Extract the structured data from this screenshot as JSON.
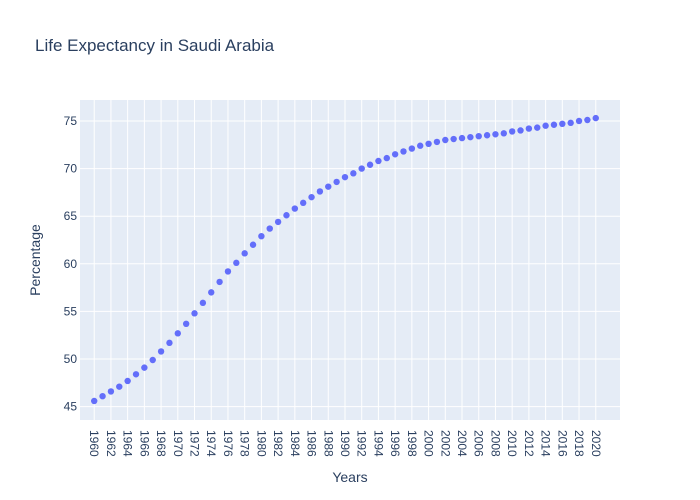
{
  "chart_data": {
    "type": "scatter",
    "title": "Life Expectancy in Saudi Arabia",
    "xlabel": "Years",
    "ylabel": "Percentage",
    "xlim": [
      1958.3,
      2022.9
    ],
    "ylim": [
      43.6,
      77.2
    ],
    "grid": true,
    "legend": "none",
    "colors": {
      "marker": "#636efa",
      "plot_bg": "#e5ecf6",
      "grid": "#ffffff",
      "text": "#2a3f5f"
    },
    "x_ticks": [
      1960,
      1962,
      1964,
      1966,
      1968,
      1970,
      1972,
      1974,
      1976,
      1978,
      1980,
      1982,
      1984,
      1986,
      1988,
      1990,
      1992,
      1994,
      1996,
      1998,
      2000,
      2002,
      2004,
      2006,
      2008,
      2010,
      2012,
      2014,
      2016,
      2018,
      2020
    ],
    "y_ticks": [
      45,
      50,
      55,
      60,
      65,
      70,
      75
    ],
    "x": [
      1960,
      1961,
      1962,
      1963,
      1964,
      1965,
      1966,
      1967,
      1968,
      1969,
      1970,
      1971,
      1972,
      1973,
      1974,
      1975,
      1976,
      1977,
      1978,
      1979,
      1980,
      1981,
      1982,
      1983,
      1984,
      1985,
      1986,
      1987,
      1988,
      1989,
      1990,
      1991,
      1992,
      1993,
      1994,
      1995,
      1996,
      1997,
      1998,
      1999,
      2000,
      2001,
      2002,
      2003,
      2004,
      2005,
      2006,
      2007,
      2008,
      2009,
      2010,
      2011,
      2012,
      2013,
      2014,
      2015,
      2016,
      2017,
      2018,
      2019,
      2020
    ],
    "values": [
      45.6,
      46.1,
      46.6,
      47.1,
      47.7,
      48.4,
      49.1,
      49.9,
      50.8,
      51.7,
      52.7,
      53.7,
      54.8,
      55.9,
      57.0,
      58.1,
      59.2,
      60.1,
      61.1,
      62.0,
      62.9,
      63.7,
      64.4,
      65.1,
      65.8,
      66.4,
      67.0,
      67.6,
      68.1,
      68.6,
      69.1,
      69.5,
      70.0,
      70.4,
      70.8,
      71.1,
      71.5,
      71.8,
      72.1,
      72.4,
      72.6,
      72.8,
      73.0,
      73.1,
      73.2,
      73.3,
      73.4,
      73.5,
      73.6,
      73.7,
      73.9,
      74.0,
      74.2,
      74.3,
      74.5,
      74.6,
      74.7,
      74.8,
      75.0,
      75.1,
      75.3
    ]
  }
}
